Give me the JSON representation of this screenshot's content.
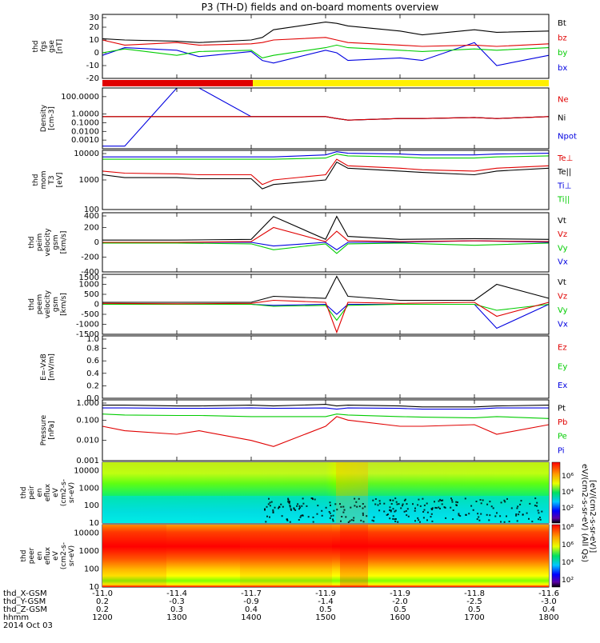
{
  "title": "P3 (TH-D) fields and on-board moments overview",
  "date_label": "2014 Oct 03",
  "orbit_rows": [
    {
      "label": "thd_X-GSM",
      "values": [
        "-11.0",
        "-11.4",
        "-11.7",
        "-11.9",
        "-11.9",
        "-11.8",
        "-11.6"
      ]
    },
    {
      "label": "thd_Y-GSM",
      "values": [
        "0.2",
        "-0.3",
        "-0.9",
        "-1.4",
        "-2.0",
        "-2.5",
        "-3.0"
      ]
    },
    {
      "label": "thd_Z-GSM",
      "values": [
        "0.2",
        "0.3",
        "0.4",
        "0.5",
        "0.5",
        "0.5",
        "0.4"
      ]
    },
    {
      "label": "hhmm",
      "values": [
        "1200",
        "1300",
        "1400",
        "1500",
        "1600",
        "1700",
        "1800"
      ]
    }
  ],
  "top_axis_ticks": [
    "-11.0",
    "-11.4",
    "-11.7",
    "-11.9",
    "-11.9",
    "-11.8",
    "-11.6"
  ],
  "colorbars": {
    "ion": {
      "ticks": [
        "10⁶",
        "10⁴",
        "10²"
      ],
      "label": "eV/(cm2-s-sr-eV) (All Qs)"
    },
    "electron": {
      "ticks": [
        "10⁸",
        "10⁶",
        "10⁴",
        "10²"
      ],
      "label": "[eV/(cm2-s-sr-eV)]"
    }
  },
  "chart_data": [
    {
      "type": "line",
      "panel": "fgs",
      "ylabel": [
        "thd",
        "fgs",
        "gse",
        "[nT]"
      ],
      "ylim": [
        -20,
        30
      ],
      "yticks": [
        "30",
        "20",
        "10",
        "0",
        "-10",
        "-20"
      ],
      "legend": [
        {
          "name": "Bt",
          "color": "#000000"
        },
        {
          "name": "bz",
          "color": "#e00000"
        },
        {
          "name": "by",
          "color": "#00cc00"
        },
        {
          "name": "bx",
          "color": "#0000e0"
        }
      ],
      "x": [
        1200,
        1230,
        1300,
        1330,
        1400,
        1415,
        1430,
        1500,
        1515,
        1530,
        1600,
        1630,
        1700,
        1730,
        1800
      ],
      "series": [
        {
          "name": "Bt",
          "values": [
            11,
            10,
            9,
            8,
            10,
            12,
            18,
            24,
            23,
            21,
            17,
            14,
            18,
            16,
            17
          ]
        },
        {
          "name": "bz",
          "values": [
            10,
            6,
            8,
            6,
            7,
            8,
            10,
            12,
            10,
            8,
            6,
            5,
            6,
            5,
            7
          ]
        },
        {
          "name": "by",
          "values": [
            0,
            3,
            -2,
            1,
            2,
            -4,
            -2,
            4,
            6,
            4,
            2,
            1,
            3,
            2,
            4
          ]
        },
        {
          "name": "bx",
          "values": [
            -2,
            4,
            2,
            -3,
            1,
            -6,
            -8,
            2,
            0,
            -6,
            -4,
            -6,
            8,
            -10,
            -2
          ]
        }
      ]
    },
    {
      "type": "line",
      "panel": "density",
      "ylabel": [
        "Density",
        "[cm-3]"
      ],
      "ylim": [
        0.0001,
        1000
      ],
      "log": true,
      "yticks": [
        "100.0000",
        "1.0000",
        "0.1000",
        "0.0100",
        "0.0010"
      ],
      "legend": [
        {
          "name": "Ne",
          "color": "#e00000"
        },
        {
          "name": "Ni",
          "color": "#000000"
        },
        {
          "name": "Npot",
          "color": "#0000e0"
        }
      ],
      "x": [
        1200,
        1230,
        1300,
        1330,
        1400,
        1430,
        1500,
        1515,
        1530,
        1600,
        1630,
        1700,
        1730,
        1800
      ],
      "series": [
        {
          "name": "Ne",
          "values": [
            0.5,
            0.5,
            0.5,
            0.5,
            0.5,
            0.5,
            0.5,
            0.3,
            0.2,
            0.3,
            0.3,
            0.4,
            0.3,
            0.5
          ]
        },
        {
          "name": "Ni",
          "values": [
            0.5,
            0.5,
            0.5,
            0.5,
            0.5,
            0.5,
            0.5,
            0.3,
            0.2,
            0.3,
            0.3,
            0.4,
            0.3,
            0.5
          ]
        },
        {
          "name": "Npot",
          "values": [
            0.0002,
            0.0002,
            1000,
            1000,
            0.5,
            0.5,
            0.5,
            0.3,
            0.2,
            0.3,
            0.3,
            0.4,
            0.3,
            0.5
          ]
        }
      ]
    },
    {
      "type": "line",
      "panel": "temperature",
      "ylabel": [
        "thd",
        "mom",
        "T3",
        "[eV]"
      ],
      "ylim": [
        100,
        10000
      ],
      "log": true,
      "yticks": [
        "10000",
        "1000",
        "100"
      ],
      "legend": [
        {
          "name": "Te⊥",
          "color": "#e00000"
        },
        {
          "name": "Te||",
          "color": "#000000"
        },
        {
          "name": "Ti⊥",
          "color": "#0000e0"
        },
        {
          "name": "Ti||",
          "color": "#00cc00"
        }
      ],
      "x": [
        1200,
        1230,
        1300,
        1330,
        1400,
        1415,
        1430,
        1500,
        1515,
        1530,
        1600,
        1630,
        1700,
        1730,
        1800
      ],
      "series": [
        {
          "name": "Te⊥",
          "values": [
            2000,
            1700,
            1600,
            1500,
            1500,
            700,
            1000,
            1500,
            5000,
            3000,
            2500,
            2200,
            2000,
            2500,
            3000
          ]
        },
        {
          "name": "Te||",
          "values": [
            1500,
            1200,
            1200,
            1100,
            1100,
            500,
            700,
            1000,
            4000,
            2500,
            2000,
            1800,
            1500,
            2000,
            2500
          ]
        },
        {
          "name": "Ti⊥",
          "values": [
            6000,
            6000,
            6000,
            6000,
            6000,
            6000,
            6000,
            7000,
            9000,
            8000,
            7500,
            7000,
            7000,
            7500,
            8000
          ]
        },
        {
          "name": "Ti||",
          "values": [
            5000,
            5000,
            5000,
            5000,
            5000,
            5000,
            5000,
            5500,
            7500,
            6500,
            6000,
            5500,
            5500,
            6000,
            6500
          ]
        }
      ]
    },
    {
      "type": "line",
      "panel": "ion-velocity",
      "ylabel": [
        "thd",
        "peim",
        "velocity",
        "gsm",
        "[km/s]"
      ],
      "ylim": [
        -400,
        400
      ],
      "yticks": [
        "400",
        "200",
        "0",
        "-200",
        "-400"
      ],
      "legend": [
        {
          "name": "Vt",
          "color": "#000000"
        },
        {
          "name": "Vz",
          "color": "#e00000"
        },
        {
          "name": "Vy",
          "color": "#00cc00"
        },
        {
          "name": "Vx",
          "color": "#0000e0"
        }
      ],
      "x": [
        1200,
        1300,
        1400,
        1430,
        1500,
        1515,
        1530,
        1600,
        1700,
        1800
      ],
      "series": [
        {
          "name": "Vt",
          "values": [
            30,
            30,
            40,
            350,
            40,
            350,
            80,
            40,
            50,
            40
          ]
        },
        {
          "name": "Vz",
          "values": [
            0,
            0,
            10,
            200,
            10,
            150,
            20,
            10,
            20,
            10
          ]
        },
        {
          "name": "Vy",
          "values": [
            -10,
            -10,
            -20,
            -100,
            -20,
            -150,
            -20,
            -10,
            -40,
            -10
          ]
        },
        {
          "name": "Vx",
          "values": [
            0,
            0,
            0,
            -50,
            0,
            -100,
            0,
            0,
            20,
            0
          ]
        }
      ]
    },
    {
      "type": "line",
      "panel": "electron-velocity",
      "ylabel": [
        "thd",
        "peem",
        "velocity",
        "gsm",
        "[km/s]"
      ],
      "ylim": [
        -1500,
        1500
      ],
      "yticks": [
        "1500",
        "1000",
        "500",
        "0",
        "-500",
        "-1000",
        "-1500"
      ],
      "legend": [
        {
          "name": "Vt",
          "color": "#000000"
        },
        {
          "name": "Vz",
          "color": "#e00000"
        },
        {
          "name": "Vy",
          "color": "#00cc00"
        },
        {
          "name": "Vx",
          "color": "#0000e0"
        }
      ],
      "x": [
        1200,
        1300,
        1400,
        1430,
        1500,
        1515,
        1530,
        1600,
        1700,
        1730,
        1800
      ],
      "series": [
        {
          "name": "Vt",
          "values": [
            100,
            100,
            100,
            400,
            300,
            1400,
            400,
            200,
            200,
            1000,
            300
          ]
        },
        {
          "name": "Vz",
          "values": [
            50,
            30,
            50,
            200,
            100,
            -1400,
            100,
            50,
            100,
            -600,
            100
          ]
        },
        {
          "name": "Vy",
          "values": [
            0,
            0,
            0,
            -100,
            -50,
            -800,
            -50,
            0,
            0,
            -300,
            0
          ]
        },
        {
          "name": "Vx",
          "values": [
            0,
            0,
            0,
            -50,
            0,
            -500,
            0,
            0,
            0,
            -1200,
            0
          ]
        }
      ]
    },
    {
      "type": "line",
      "panel": "efield",
      "ylabel": [
        "E=-VxB",
        "[mV/m]"
      ],
      "ylim": [
        0,
        1.0
      ],
      "yticks": [
        "1.0",
        "0.8",
        "0.6",
        "0.4",
        "0.2",
        "0.0"
      ],
      "legend": [
        {
          "name": "Ez",
          "color": "#e00000"
        },
        {
          "name": "Ey",
          "color": "#00cc00"
        },
        {
          "name": "Ex",
          "color": "#0000e0"
        }
      ],
      "x": [],
      "series": []
    },
    {
      "type": "line",
      "panel": "pressure",
      "ylabel": [
        "Pressure",
        "[nPa]"
      ],
      "ylim": [
        0.001,
        1.0
      ],
      "log": true,
      "yticks": [
        "1.000",
        "0.100",
        "0.010",
        "0.001"
      ],
      "legend": [
        {
          "name": "Pt",
          "color": "#000000"
        },
        {
          "name": "Pb",
          "color": "#e00000"
        },
        {
          "name": "Pe",
          "color": "#00cc00"
        },
        {
          "name": "Pi",
          "color": "#0000e0"
        }
      ],
      "x": [
        1200,
        1230,
        1300,
        1330,
        1400,
        1430,
        1500,
        1515,
        1530,
        1600,
        1630,
        1700,
        1730,
        1800
      ],
      "series": [
        {
          "name": "Pt",
          "values": [
            0.55,
            0.55,
            0.5,
            0.5,
            0.55,
            0.5,
            0.6,
            0.5,
            0.55,
            0.5,
            0.45,
            0.45,
            0.5,
            0.55
          ]
        },
        {
          "name": "Pb",
          "values": [
            0.05,
            0.03,
            0.02,
            0.03,
            0.01,
            0.005,
            0.05,
            0.15,
            0.1,
            0.05,
            0.05,
            0.06,
            0.02,
            0.06
          ]
        },
        {
          "name": "Pe",
          "values": [
            0.2,
            0.18,
            0.17,
            0.17,
            0.15,
            0.15,
            0.15,
            0.2,
            0.18,
            0.15,
            0.14,
            0.13,
            0.15,
            0.12
          ]
        },
        {
          "name": "Pi",
          "values": [
            0.4,
            0.4,
            0.38,
            0.38,
            0.4,
            0.38,
            0.4,
            0.35,
            0.4,
            0.38,
            0.35,
            0.35,
            0.4,
            0.4
          ]
        }
      ]
    },
    {
      "type": "heatmap",
      "panel": "ion-spectrogram",
      "ylabel": [
        "thd",
        "peir",
        "en",
        "eflux",
        "eV",
        "(cm2-s-",
        "sr-eV)"
      ],
      "ylim": [
        10,
        30000
      ],
      "log": true,
      "yticks": [
        "10000",
        "1000",
        "100",
        "10"
      ]
    },
    {
      "type": "heatmap",
      "panel": "electron-spectrogram",
      "ylabel": [
        "thd",
        "peer",
        "en",
        "eflux",
        "eV",
        "(cm2-s-",
        "sr-eV)"
      ],
      "ylim": [
        10,
        30000
      ],
      "log": true,
      "yticks": [
        "10000",
        "1000",
        "100",
        "10"
      ]
    }
  ]
}
